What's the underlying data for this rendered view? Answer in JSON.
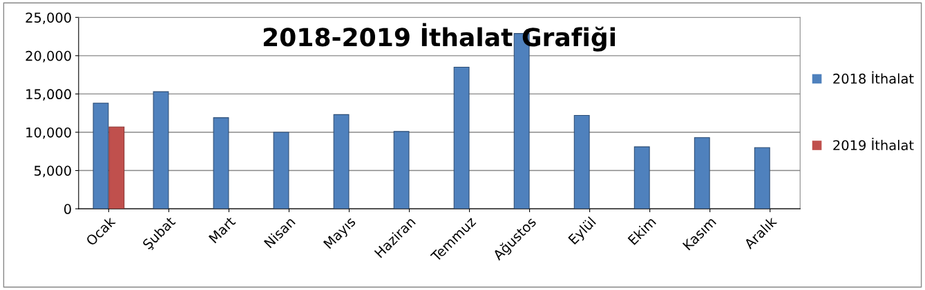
{
  "chart_data": {
    "type": "bar",
    "title": "2018-2019 İthalat Grafiği",
    "categories": [
      "Ocak",
      "Şubat",
      "Mart",
      "Nisan",
      "Mayıs",
      "Haziran",
      "Temmuz",
      "Ağustos",
      "Eylül",
      "Ekim",
      "Kasım",
      "Aralık"
    ],
    "series": [
      {
        "name": "2018 İthalat",
        "color": "#4f81bd",
        "values": [
          13800,
          15300,
          11900,
          10000,
          12300,
          10100,
          18500,
          22900,
          12200,
          8100,
          9300,
          8000
        ]
      },
      {
        "name": "2019 İthalat",
        "color": "#c0504d",
        "values": [
          10700,
          null,
          null,
          null,
          null,
          null,
          null,
          null,
          null,
          null,
          null,
          null
        ]
      }
    ],
    "ylim": [
      0,
      25000
    ],
    "yticks": [
      {
        "value": 0,
        "label": "0"
      },
      {
        "value": 5000,
        "label": "5,000"
      },
      {
        "value": 10000,
        "label": "10,000"
      },
      {
        "value": 15000,
        "label": "15,000"
      },
      {
        "value": 20000,
        "label": "20,000"
      },
      {
        "value": 25000,
        "label": "25,000"
      }
    ],
    "grid": "y",
    "legend": "right"
  }
}
